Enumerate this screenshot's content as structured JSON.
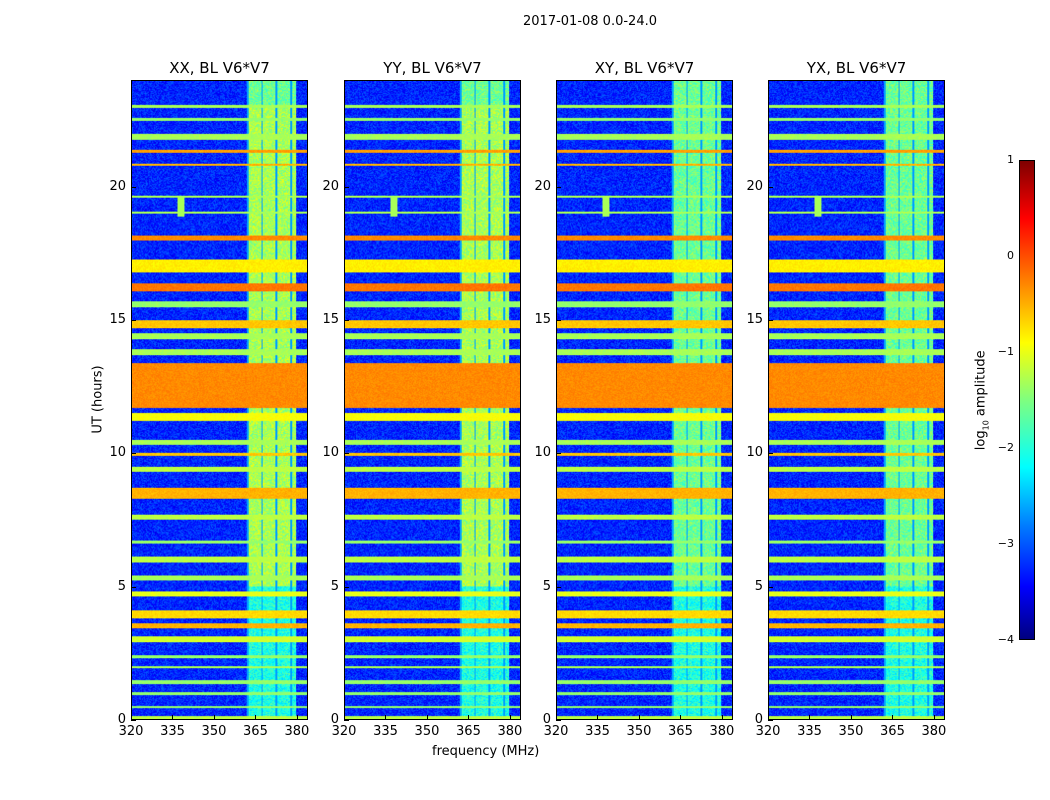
{
  "figure": {
    "suptitle": "2017-01-08 0.0-24.0",
    "xlabel": "frequency (MHz)",
    "ylabel": "UT (hours)",
    "cbar_label": "log",
    "cbar_sub": "10",
    "cbar_label2": " amplitude"
  },
  "chart_data": [
    {
      "type": "heatmap",
      "title": "XX, BL V6*V7"
    },
    {
      "type": "heatmap",
      "title": "YY, BL V6*V7"
    },
    {
      "type": "heatmap",
      "title": "XY, BL V6*V7"
    },
    {
      "type": "heatmap",
      "title": "YX, BL V6*V7"
    }
  ],
  "shared": {
    "xlim": [
      320,
      384
    ],
    "ylim": [
      0,
      24
    ],
    "xticks": [
      "320",
      "335",
      "350",
      "365",
      "380"
    ],
    "xtick_values": [
      320,
      335,
      350,
      365,
      380
    ],
    "yticks": [
      "0",
      "5",
      "10",
      "15",
      "20"
    ],
    "ytick_values": [
      0,
      5,
      10,
      15,
      20
    ],
    "colorbar": {
      "range": [
        -4,
        1
      ],
      "ticks": [
        "1",
        "0",
        "−1",
        "−2",
        "−3",
        "−4"
      ],
      "tick_values": [
        1,
        0,
        -1,
        -2,
        -3,
        -4
      ],
      "colormap": "jet"
    },
    "background_log_amp": -3.2,
    "rfi_freq_band_MHz": [
      362,
      380
    ],
    "rfi_freq_band_log_amp": -1.6,
    "point_source": {
      "freq_MHz": 338,
      "time_h": 19.3,
      "log_amp": -1.3
    },
    "horizontal_bands": [
      [
        0.0,
        0.1,
        -1.2
      ],
      [
        0.4,
        0.5,
        -1.4
      ],
      [
        0.9,
        1.0,
        -1.4
      ],
      [
        1.3,
        1.45,
        -1.4
      ],
      [
        1.9,
        2.0,
        -1.3
      ],
      [
        2.3,
        2.4,
        -1.4
      ],
      [
        2.9,
        3.1,
        -1.1
      ],
      [
        3.4,
        3.6,
        -0.5
      ],
      [
        3.8,
        4.1,
        -0.7
      ],
      [
        4.6,
        4.8,
        -1.0
      ],
      [
        5.2,
        5.4,
        -1.3
      ],
      [
        5.9,
        6.1,
        -1.2
      ],
      [
        6.6,
        6.7,
        -1.4
      ],
      [
        7.5,
        7.7,
        -1.2
      ],
      [
        8.3,
        8.7,
        -0.5
      ],
      [
        9.3,
        9.5,
        -1.2
      ],
      [
        9.9,
        10.0,
        -0.6
      ],
      [
        10.3,
        10.5,
        -1.3
      ],
      [
        11.2,
        11.5,
        -0.9
      ],
      [
        11.7,
        13.4,
        -0.3
      ],
      [
        13.7,
        13.9,
        -1.3
      ],
      [
        14.3,
        14.5,
        -1.3
      ],
      [
        14.7,
        15.0,
        -0.6
      ],
      [
        15.5,
        15.7,
        -1.4
      ],
      [
        16.1,
        16.4,
        -0.2
      ],
      [
        16.8,
        17.3,
        -0.8
      ],
      [
        18.0,
        18.2,
        -0.3
      ],
      [
        19.0,
        19.1,
        -1.3
      ],
      [
        19.6,
        19.7,
        -1.3
      ],
      [
        20.8,
        20.9,
        -0.5
      ],
      [
        21.3,
        21.4,
        -0.4
      ],
      [
        21.8,
        22.0,
        -1.3
      ],
      [
        22.5,
        22.6,
        -1.4
      ],
      [
        23.0,
        23.1,
        -1.3
      ]
    ]
  }
}
